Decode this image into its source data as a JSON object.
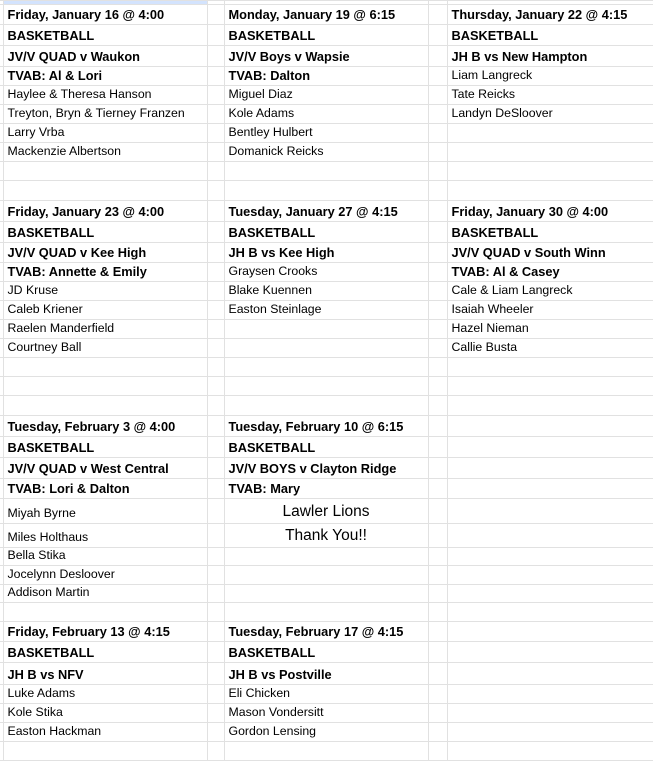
{
  "sections": [
    {
      "columns": [
        {
          "date": "Friday, January 16 @ 4:00",
          "sport": "BASKETBALL",
          "matchup": "JV/V QUAD v Waukon",
          "tvab": "TVAB: Al & Lori",
          "volunteers": [
            "Haylee & Theresa Hanson",
            "Treyton, Bryn & Tierney Franzen",
            "Larry Vrba",
            "Mackenzie Albertson"
          ]
        },
        {
          "date": "Monday, January 19 @ 6:15",
          "sport": "BASKETBALL",
          "matchup": "JV/V Boys v Wapsie",
          "tvab": "TVAB: Dalton",
          "volunteers": [
            "Miguel Diaz",
            "Kole Adams",
            "Bentley Hulbert",
            "Domanick Reicks"
          ]
        },
        {
          "date": "Thursday, January 22 @ 4:15",
          "sport": "BASKETBALL",
          "matchup": "JH B vs New Hampton",
          "volunteers": [
            "Liam Langreck",
            "Tate Reicks",
            "Landyn DeSloover"
          ]
        }
      ]
    },
    {
      "columns": [
        {
          "date": "Friday, January 23 @ 4:00",
          "sport": "BASKETBALL",
          "matchup": "JV/V QUAD v Kee High",
          "tvab": "TVAB: Annette & Emily",
          "volunteers": [
            "JD Kruse",
            "Caleb Kriener",
            "Raelen Manderfield",
            "Courtney Ball"
          ]
        },
        {
          "date": "Tuesday, January 27 @ 4:15",
          "sport": "BASKETBALL",
          "matchup": "JH B vs Kee High",
          "volunteers": [
            "Graysen Crooks",
            "Blake Kuennen",
            "Easton Steinlage"
          ]
        },
        {
          "date": "Friday, January 30 @ 4:00",
          "sport": "BASKETBALL",
          "matchup": "JV/V QUAD v South Winn",
          "tvab": "TVAB: Al & Casey",
          "volunteers": [
            "Cale & Liam Langreck",
            "Isaiah Wheeler",
            "Hazel Nieman",
            "Callie Busta"
          ]
        }
      ]
    },
    {
      "columns": [
        {
          "date": "Tuesday, February 3 @ 4:00",
          "sport": "BASKETBALL",
          "matchup": "JV/V QUAD v West Central",
          "tvab": "TVAB: Lori & Dalton",
          "volunteers": [
            "Miyah Byrne",
            "Miles Holthaus",
            "Bella Stika",
            "Jocelynn Desloover",
            "Addison Martin"
          ]
        },
        {
          "date": "Tuesday, February 10 @ 6:15",
          "sport": "BASKETBALL",
          "matchup": "JV/V BOYS v Clayton Ridge",
          "tvab": "TVAB: Mary",
          "volunteers": [],
          "note": [
            "Lawler Lions",
            "Thank You!!"
          ]
        },
        {}
      ]
    },
    {
      "columns": [
        {
          "date": "Friday, February 13 @ 4:15",
          "sport": "BASKETBALL",
          "matchup": "JH B vs NFV",
          "volunteers": [
            "Luke Adams",
            "Kole Stika",
            "Easton Hackman"
          ]
        },
        {
          "date": "Tuesday, February 17 @ 4:15",
          "sport": "BASKETBALL",
          "matchup": "JH B vs Postville",
          "volunteers": [
            "Eli Chicken",
            "Mason Vondersitt",
            "Gordon Lensing"
          ]
        },
        {}
      ]
    }
  ]
}
